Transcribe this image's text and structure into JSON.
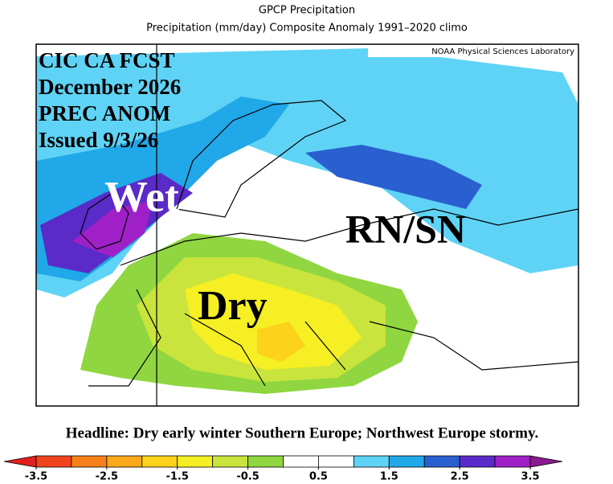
{
  "header": {
    "title": "GPCP Precipitation",
    "subtitle": "Precipitation (mm/day) Composite Anomaly 1991–2020 climo",
    "credit": "NOAA Physical Sciences Laboratory"
  },
  "overlay": {
    "lines": [
      "CIC CA FCST",
      "December 2026",
      "PREC ANOM",
      "Issued 9/3/26"
    ],
    "wet": "Wet",
    "rain_snow": "RN/SN",
    "dry": "Dry"
  },
  "headline": "Headline: Dry early winter Southern Europe; Northwest Europe stormy.",
  "colorbar": {
    "ticks": [
      -3.5,
      -2.5,
      -1.5,
      -0.5,
      0.5,
      1.5,
      2.5,
      3.5
    ],
    "low_color": "#e0201c",
    "high_color": "#8b1a8e",
    "colors": [
      "#f0451c",
      "#f8801a",
      "#fba81a",
      "#fcd21b",
      "#f5ef23",
      "#c9e43c",
      "#8fd640",
      "#ffffff",
      "#ffffff",
      "#5fd3f5",
      "#20a8e8",
      "#2a5fd0",
      "#5a2bc8",
      "#a020c8"
    ]
  }
}
